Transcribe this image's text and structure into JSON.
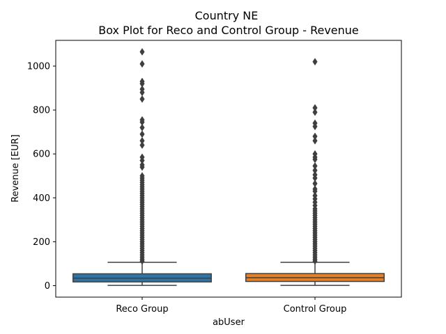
{
  "chart_data": {
    "type": "box",
    "title": "Country NE",
    "subtitle": "Box Plot for Reco and Control Group - Revenue",
    "xlabel": "abUser",
    "ylabel": "Revenue [EUR]",
    "ylim": [
      -55,
      1110
    ],
    "yticks": [
      0,
      200,
      400,
      600,
      800,
      1000
    ],
    "grid": false,
    "categories": [
      "Reco Group",
      "Control Group"
    ],
    "colors": [
      "#3274a1",
      "#e1812c"
    ],
    "series": [
      {
        "category": "Reco Group",
        "whisker_low": 1,
        "q1": 17,
        "median": 34,
        "q3": 54,
        "whisker_high": 106,
        "outliers": [
          1065,
          1010,
          930,
          920,
          895,
          880,
          850,
          755,
          745,
          720,
          690,
          660,
          640,
          585,
          570,
          550,
          540,
          500,
          490,
          480,
          470,
          460,
          450,
          440,
          430,
          420,
          410,
          400,
          390,
          380,
          370,
          360,
          350,
          340,
          330,
          320,
          310,
          300,
          290,
          280,
          270,
          260,
          250,
          240,
          230,
          220,
          210,
          200,
          190,
          180,
          170,
          160,
          150,
          140,
          130,
          120,
          112
        ]
      },
      {
        "category": "Control Group",
        "whisker_low": 1,
        "q1": 19,
        "median": 36,
        "q3": 55,
        "whisker_high": 106,
        "outliers": [
          1020,
          810,
          790,
          740,
          725,
          680,
          660,
          600,
          585,
          575,
          545,
          525,
          505,
          490,
          465,
          440,
          430,
          410,
          395,
          380,
          365,
          350,
          340,
          330,
          320,
          310,
          300,
          290,
          280,
          270,
          260,
          250,
          240,
          230,
          220,
          210,
          200,
          190,
          180,
          170,
          160,
          150,
          140,
          130,
          120,
          112
        ]
      }
    ]
  }
}
